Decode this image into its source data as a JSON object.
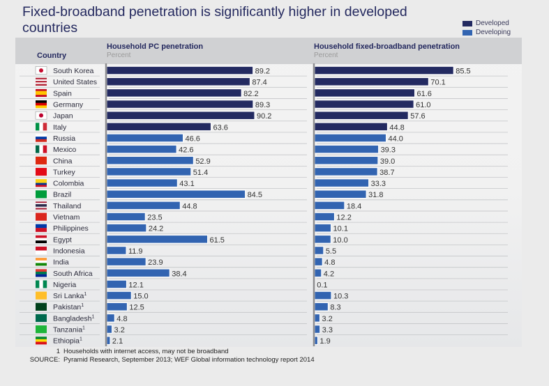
{
  "title": "Fixed-broadband penetration is significantly higher in developed countries",
  "legend": [
    {
      "label": "Developed",
      "color": "#232a61"
    },
    {
      "label": "Developing",
      "color": "#3264b1"
    }
  ],
  "header": {
    "country_label": "Country",
    "left_title": "Household PC penetration",
    "left_unit": "Percent",
    "right_title": "Household fixed-broadband penetration",
    "right_unit": "Percent"
  },
  "footnotes": [
    {
      "key": "1",
      "text": "Households with internet access, may not be broadband"
    },
    {
      "key": "SOURCE:",
      "text": "Pyramid Research, September 2013; WEF Global information technology report 2014"
    }
  ],
  "chart_data": {
    "type": "bar",
    "orientation": "horizontal",
    "title": "Fixed-broadband penetration is significantly higher in developed countries",
    "categories": [
      "South Korea",
      "United States",
      "Spain",
      "Germany",
      "Japan",
      "Italy",
      "Russia",
      "Mexico",
      "China",
      "Turkey",
      "Colombia",
      "Brazil",
      "Thailand",
      "Vietnam",
      "Philippines",
      "Egypt",
      "Indonesia",
      "India",
      "South Africa",
      "Nigeria",
      "Sri Lanka",
      "Pakistan",
      "Bangladesh",
      "Tanzania",
      "Ethiopia"
    ],
    "footnote_marker": [
      false,
      false,
      false,
      false,
      false,
      false,
      false,
      false,
      false,
      false,
      false,
      false,
      false,
      false,
      false,
      false,
      false,
      false,
      false,
      false,
      true,
      true,
      true,
      true,
      true
    ],
    "group": [
      "Developed",
      "Developed",
      "Developed",
      "Developed",
      "Developed",
      "Developed",
      "Developing",
      "Developing",
      "Developing",
      "Developing",
      "Developing",
      "Developing",
      "Developing",
      "Developing",
      "Developing",
      "Developing",
      "Developing",
      "Developing",
      "Developing",
      "Developing",
      "Developing",
      "Developing",
      "Developing",
      "Developing",
      "Developing"
    ],
    "series": [
      {
        "name": "Household PC penetration",
        "unit": "Percent",
        "values": [
          89.2,
          87.4,
          82.2,
          89.3,
          90.2,
          63.6,
          46.6,
          42.6,
          52.9,
          51.4,
          43.1,
          84.5,
          44.8,
          23.5,
          24.2,
          61.5,
          11.9,
          23.9,
          38.4,
          12.1,
          15.0,
          12.5,
          4.8,
          3.2,
          2.1
        ]
      },
      {
        "name": "Household fixed-broadband penetration",
        "unit": "Percent",
        "values": [
          85.5,
          70.1,
          61.6,
          61.0,
          57.6,
          44.8,
          44.0,
          39.3,
          39.0,
          38.7,
          33.3,
          31.8,
          18.4,
          12.2,
          10.1,
          10.0,
          5.5,
          4.8,
          4.2,
          0.1,
          10.3,
          8.3,
          3.2,
          3.3,
          1.9
        ]
      }
    ],
    "xlim": [
      0,
      100
    ],
    "grid": false,
    "legend_position": "top-right"
  },
  "flags": {
    "South Korea": [
      "#ffffff"
    ],
    "United States": [
      "#b22234",
      "#ffffff",
      "#b22234",
      "#ffffff",
      "#b22234"
    ],
    "Spain": [
      "#c60b1e",
      "#ffc400",
      "#ffc400",
      "#c60b1e"
    ],
    "Germany": [
      "#000000",
      "#dd0000",
      "#ffce00"
    ],
    "Japan": [
      "#ffffff"
    ],
    "Italy": [
      "#009246",
      "#ffffff",
      "#ce2b37"
    ],
    "Russia": [
      "#ffffff",
      "#0039a6",
      "#d52b1e"
    ],
    "Mexico": [
      "#006847",
      "#ffffff",
      "#ce1126"
    ],
    "China": [
      "#de2910"
    ],
    "Turkey": [
      "#e30a17"
    ],
    "Colombia": [
      "#fcd116",
      "#fcd116",
      "#003893",
      "#ce1126"
    ],
    "Brazil": [
      "#009c3b"
    ],
    "Thailand": [
      "#a51931",
      "#f4f5f8",
      "#2d2a4a",
      "#2d2a4a",
      "#f4f5f8",
      "#a51931"
    ],
    "Vietnam": [
      "#da251d"
    ],
    "Philippines": [
      "#0038a8",
      "#ce1126"
    ],
    "Egypt": [
      "#ce1126",
      "#ffffff",
      "#000000"
    ],
    "Indonesia": [
      "#ce1126",
      "#ffffff"
    ],
    "India": [
      "#ff9933",
      "#ffffff",
      "#138808"
    ],
    "South Africa": [
      "#de3831",
      "#007a4d",
      "#002395"
    ],
    "Nigeria": [
      "#008751",
      "#ffffff",
      "#008751"
    ],
    "Sri Lanka": [
      "#ffbe29"
    ],
    "Pakistan": [
      "#01411c"
    ],
    "Bangladesh": [
      "#006a4e"
    ],
    "Tanzania": [
      "#1eb53a"
    ],
    "Ethiopia": [
      "#078930",
      "#fcdd09",
      "#da121a"
    ]
  }
}
